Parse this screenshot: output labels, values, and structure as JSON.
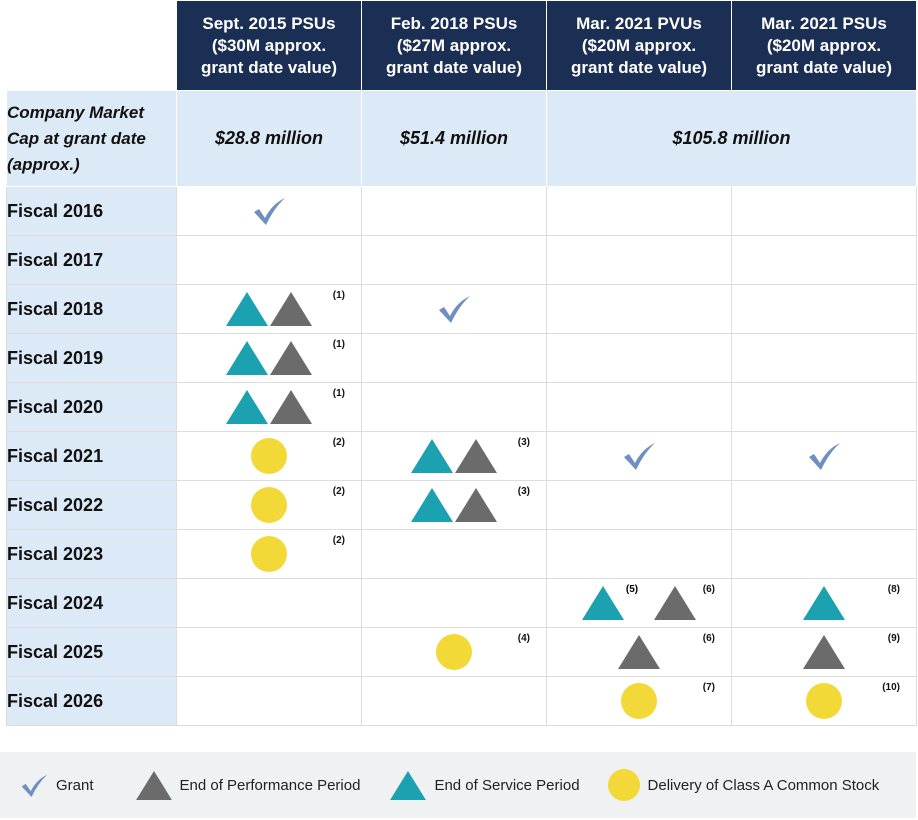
{
  "table": {
    "header": [
      [
        "Sept. 2015 PSUs",
        "($30M approx.",
        "grant date value)"
      ],
      [
        "Feb. 2018 PSUs",
        "($27M approx.",
        "grant date value)"
      ],
      [
        "Mar. 2021 PVUs",
        "($20M approx.",
        "grant date value)"
      ],
      [
        "Mar. 2021 PSUs",
        "($20M approx.",
        "grant date value)"
      ]
    ],
    "market_cap": {
      "label": [
        "Company Market",
        "Cap at grant date",
        "(approx.)"
      ],
      "values": [
        "$28.8 million",
        "$51.4 million",
        "$105.8 million"
      ]
    },
    "rows": [
      {
        "label": "Fiscal 2016",
        "cells": [
          [],
          [],
          [],
          []
        ]
      },
      {
        "label": "Fiscal 2017",
        "cells": [
          [],
          [],
          [],
          []
        ]
      },
      {
        "label": "Fiscal 2018",
        "cells": [
          [
            "(1)"
          ],
          [],
          [],
          []
        ]
      },
      {
        "label": "Fiscal 2019",
        "cells": [
          [
            "(1)"
          ],
          [],
          [],
          []
        ]
      },
      {
        "label": "Fiscal 2020",
        "cells": [
          [
            "(1)"
          ],
          [],
          [],
          []
        ]
      },
      {
        "label": "Fiscal 2021",
        "cells": [
          [
            "(2)"
          ],
          [
            "(3)"
          ],
          [],
          []
        ]
      },
      {
        "label": "Fiscal 2022",
        "cells": [
          [
            "(2)"
          ],
          [
            "(3)"
          ],
          [],
          []
        ]
      },
      {
        "label": "Fiscal 2023",
        "cells": [
          [
            "(2)"
          ],
          [],
          [],
          []
        ]
      },
      {
        "label": "Fiscal 2024",
        "cells": [
          [],
          [],
          [
            "(5)",
            "(6)"
          ],
          [
            "(8)"
          ]
        ]
      },
      {
        "label": "Fiscal 2025",
        "cells": [
          [],
          [
            "(4)"
          ],
          [
            "(6)"
          ],
          [
            "(9)"
          ]
        ]
      },
      {
        "label": "Fiscal 2026",
        "cells": [
          [],
          [],
          [
            "(7)"
          ],
          [
            "(10)"
          ]
        ]
      }
    ]
  },
  "legend": [
    "Grant",
    "End of Performance Period",
    "End of Service Period",
    "Delivery of Class A Common Stock"
  ]
}
